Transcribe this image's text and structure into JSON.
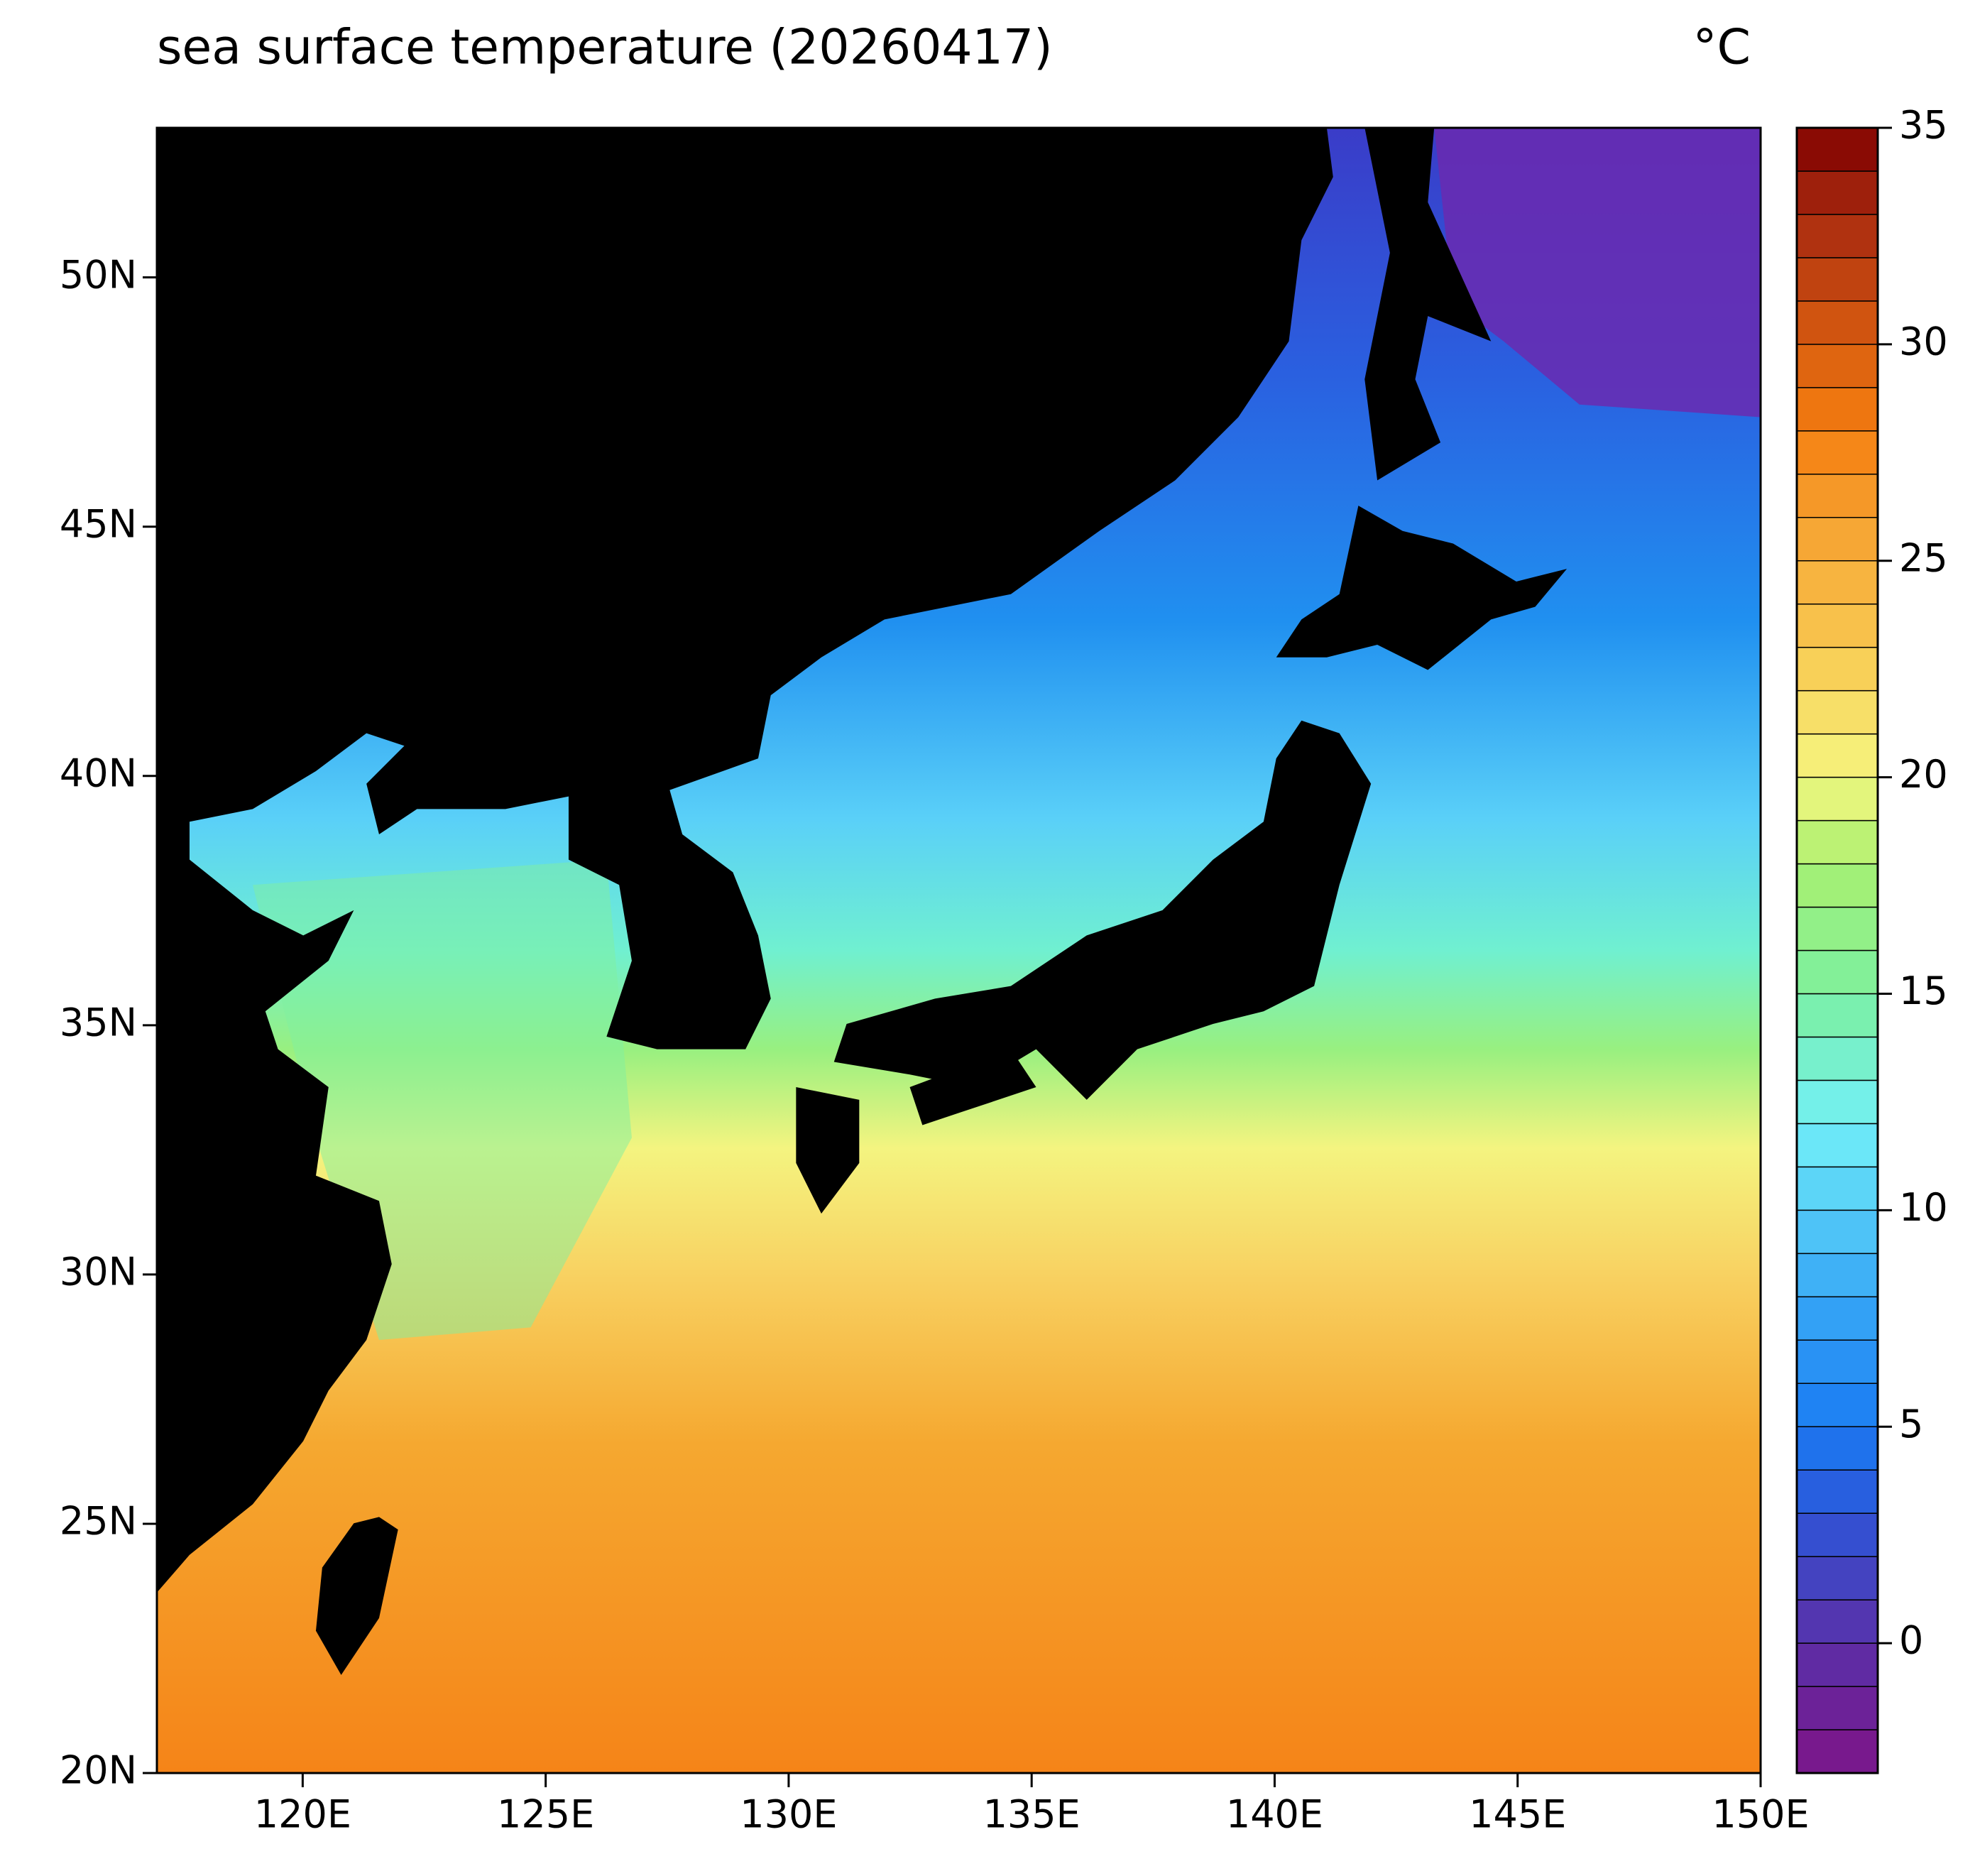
{
  "chart_data": {
    "type": "map",
    "title": "sea surface temperature (20260417)",
    "unit": "°C",
    "xlim": [
      117,
      150
    ],
    "ylim": [
      20,
      53
    ],
    "xticks": [
      {
        "value": 120,
        "label": "120E"
      },
      {
        "value": 125,
        "label": "125E"
      },
      {
        "value": 130,
        "label": "130E"
      },
      {
        "value": 135,
        "label": "135E"
      },
      {
        "value": 140,
        "label": "140E"
      },
      {
        "value": 145,
        "label": "145E"
      },
      {
        "value": 150,
        "label": "150E"
      }
    ],
    "yticks": [
      {
        "value": 20,
        "label": "20N"
      },
      {
        "value": 25,
        "label": "25N"
      },
      {
        "value": 30,
        "label": "30N"
      },
      {
        "value": 35,
        "label": "35N"
      },
      {
        "value": 40,
        "label": "40N"
      },
      {
        "value": 45,
        "label": "45N"
      },
      {
        "value": 50,
        "label": "50N"
      }
    ],
    "colorbar": {
      "lim": [
        -3,
        35
      ],
      "ticks": [
        0,
        5,
        10,
        15,
        20,
        25,
        30,
        35
      ],
      "level_interval": 1,
      "colormap": [
        {
          "value": -3,
          "color": "#7e1488"
        },
        {
          "value": 0,
          "color": "#5a30a8"
        },
        {
          "value": 3,
          "color": "#2d55d8"
        },
        {
          "value": 5,
          "color": "#1a7cf2"
        },
        {
          "value": 8,
          "color": "#38a8f6"
        },
        {
          "value": 12,
          "color": "#72f0f8"
        },
        {
          "value": 15,
          "color": "#7cf0a0"
        },
        {
          "value": 18,
          "color": "#a8f070"
        },
        {
          "value": 20,
          "color": "#f6f680"
        },
        {
          "value": 23,
          "color": "#f8c850"
        },
        {
          "value": 26,
          "color": "#f5a030"
        },
        {
          "value": 28,
          "color": "#f57f10"
        },
        {
          "value": 30,
          "color": "#d85c10"
        },
        {
          "value": 33,
          "color": "#a82a10"
        },
        {
          "value": 35,
          "color": "#800000"
        }
      ]
    }
  }
}
